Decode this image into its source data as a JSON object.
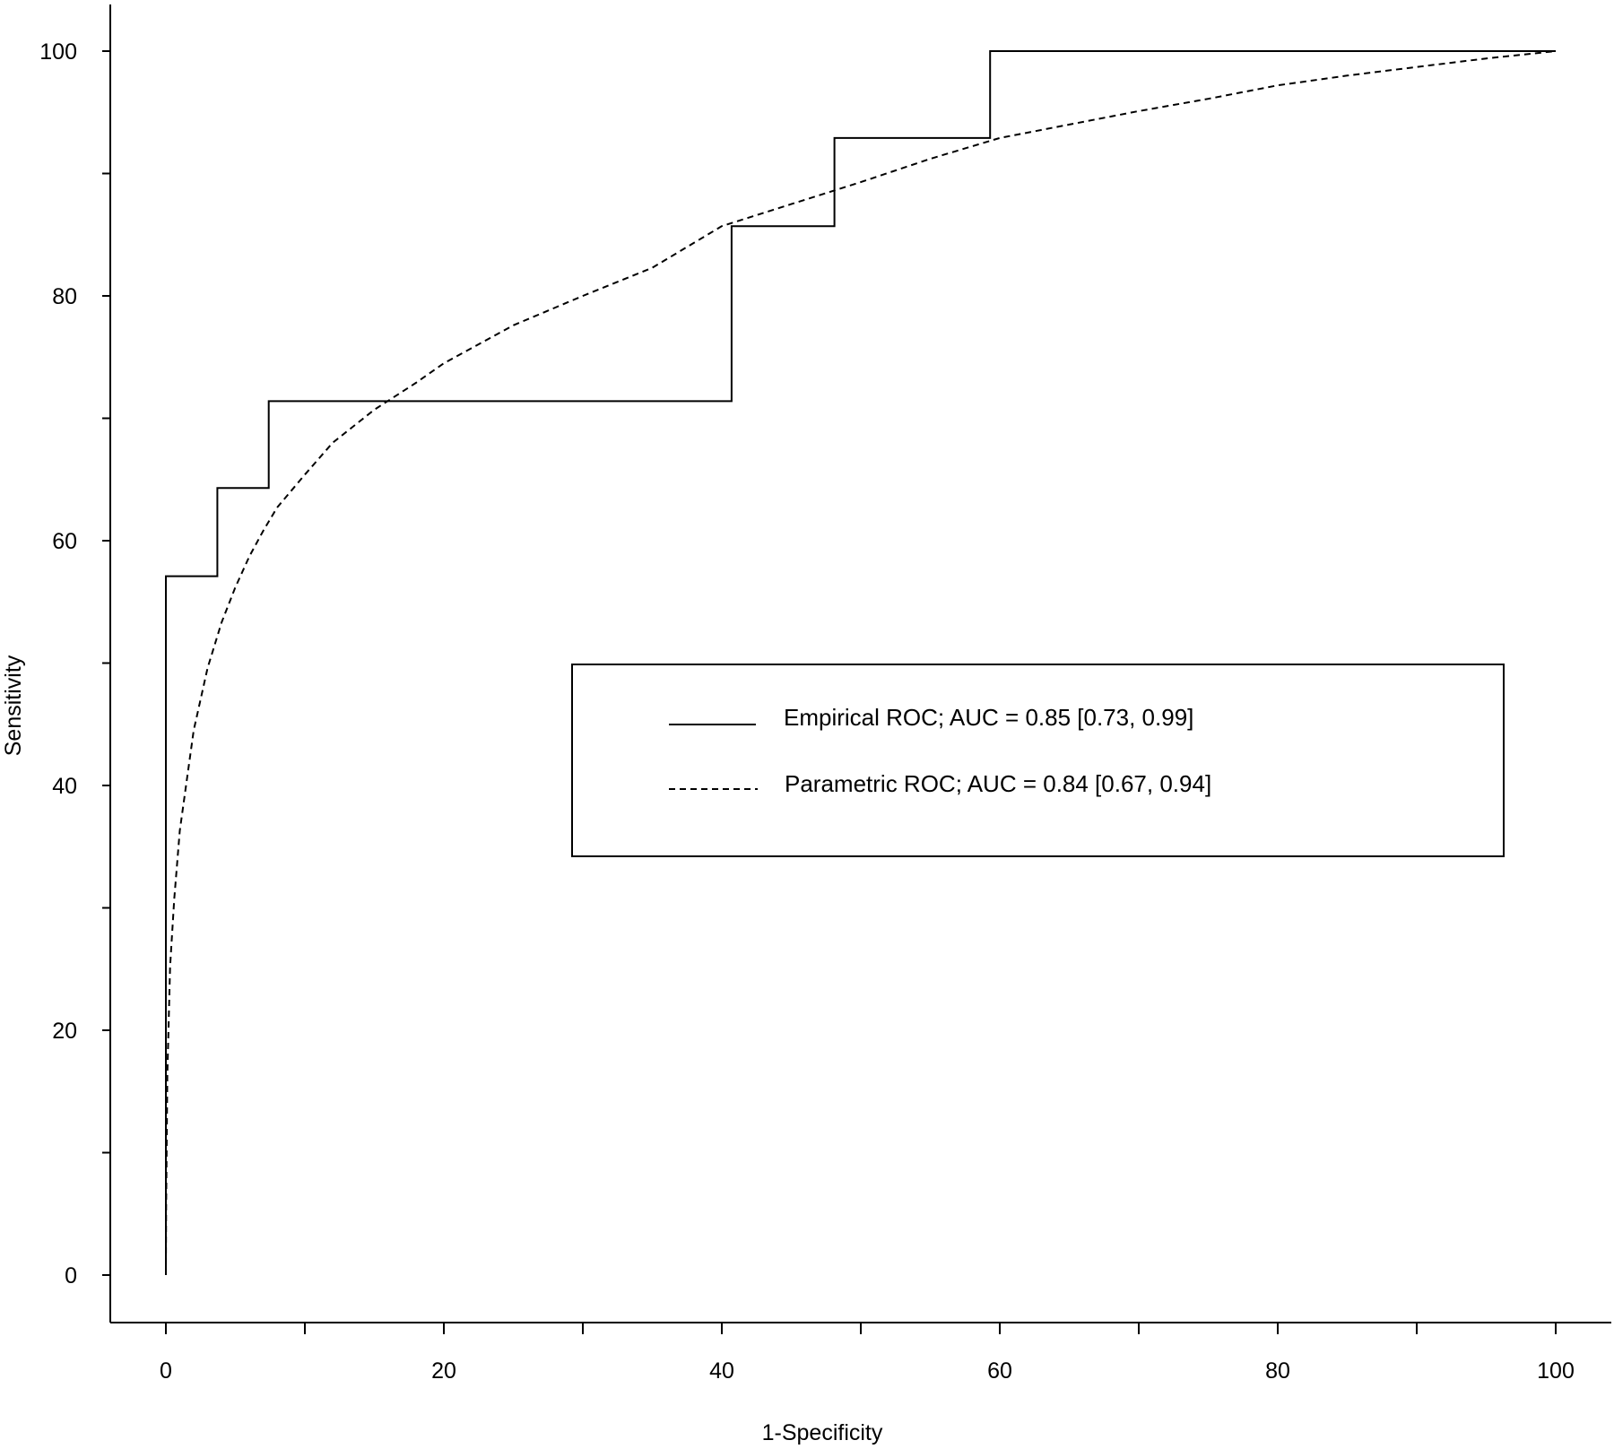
{
  "chart_data": {
    "type": "line",
    "xlabel": "1-Specificity",
    "ylabel": "Sensitivity",
    "xlim": [
      0,
      100
    ],
    "ylim": [
      0,
      100
    ],
    "x_ticks": [
      0,
      20,
      40,
      60,
      80,
      100
    ],
    "x_minor_ticks": [
      10,
      30,
      50,
      70,
      90
    ],
    "y_ticks": [
      0,
      20,
      40,
      60,
      80,
      100
    ],
    "y_minor_ticks": [
      10,
      30,
      50,
      70,
      90
    ],
    "grid": false,
    "legend": {
      "position": "center-right",
      "entries": [
        {
          "label": "Empirical ROC; AUC = 0.85 [0.73, 0.99]",
          "style": "solid"
        },
        {
          "label": "Parametric ROC; AUC = 0.84 [0.67, 0.94]",
          "style": "dashed"
        }
      ]
    },
    "series": [
      {
        "name": "Empirical ROC",
        "style": "solid",
        "points": [
          [
            0,
            0
          ],
          [
            0,
            57.1
          ],
          [
            3.7,
            57.1
          ],
          [
            3.7,
            64.3
          ],
          [
            7.4,
            64.3
          ],
          [
            7.4,
            71.4
          ],
          [
            40.7,
            71.4
          ],
          [
            40.7,
            85.7
          ],
          [
            48.1,
            85.7
          ],
          [
            48.1,
            92.9
          ],
          [
            59.3,
            92.9
          ],
          [
            59.3,
            100
          ],
          [
            100,
            100
          ]
        ]
      },
      {
        "name": "Parametric ROC",
        "style": "dashed",
        "points": [
          [
            0,
            0
          ],
          [
            0.02,
            5.6
          ],
          [
            0.1,
            16.3
          ],
          [
            0.3,
            25.2
          ],
          [
            0.6,
            30.7
          ],
          [
            1,
            36.3
          ],
          [
            2,
            44.5
          ],
          [
            3,
            49.6
          ],
          [
            4,
            53.3
          ],
          [
            5,
            56.2
          ],
          [
            6,
            58.7
          ],
          [
            7,
            60.8
          ],
          [
            8,
            62.7
          ],
          [
            10,
            65.4
          ],
          [
            12,
            68.0
          ],
          [
            15,
            70.7
          ],
          [
            18,
            72.9
          ],
          [
            20,
            74.5
          ],
          [
            25,
            77.6
          ],
          [
            30,
            80.0
          ],
          [
            35,
            82.3
          ],
          [
            40,
            85.7
          ],
          [
            45,
            87.5
          ],
          [
            50,
            89.3
          ],
          [
            55,
            91.2
          ],
          [
            60,
            92.9
          ],
          [
            65,
            94.0
          ],
          [
            70,
            95.1
          ],
          [
            75,
            96.1
          ],
          [
            80,
            97.2
          ],
          [
            85,
            98.0
          ],
          [
            90,
            98.7
          ],
          [
            95,
            99.4
          ],
          [
            100,
            100
          ]
        ]
      }
    ]
  }
}
